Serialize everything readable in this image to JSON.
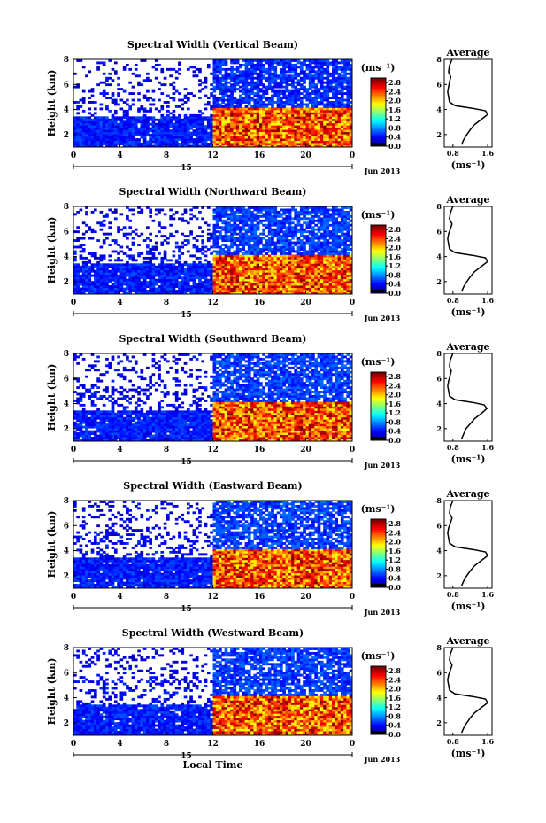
{
  "chart_data": [
    {
      "type": "heatmap",
      "title": "Spectral Width (Vertical Beam)",
      "ylabel": "Height (km)",
      "xticks": [
        "0",
        "4",
        "8",
        "12",
        "16",
        "20",
        "0"
      ],
      "date_day": "15",
      "date_month": "Jun 2013",
      "xlim": [
        0,
        24
      ],
      "ylim": [
        1,
        8
      ],
      "yticks": [
        "2",
        "4",
        "6",
        "8"
      ],
      "colorbar": {
        "unit": "(ms⁻¹)",
        "ticks": [
          "0.0",
          "0.4",
          "0.8",
          "1.2",
          "1.6",
          "2.0",
          "2.4",
          "2.8"
        ],
        "range": [
          0,
          3
        ]
      },
      "regions": [
        {
          "x": [
            0,
            12
          ],
          "y": [
            1,
            3.5
          ],
          "value": 0.45,
          "density": 0.95
        },
        {
          "x": [
            0,
            12
          ],
          "y": [
            3.5,
            5.5
          ],
          "value": 0.35,
          "density": 0.25
        },
        {
          "x": [
            0,
            12
          ],
          "y": [
            5.5,
            8
          ],
          "value": 0.3,
          "density": 0.15
        },
        {
          "x": [
            12,
            24
          ],
          "y": [
            1,
            4.2
          ],
          "value": 2.4,
          "density": 1.0
        },
        {
          "x": [
            12,
            24
          ],
          "y": [
            4.2,
            8
          ],
          "value": 0.5,
          "density": 0.8
        }
      ],
      "average": {
        "title": "Average",
        "xlabel": "(ms⁻¹)",
        "xticks": [
          "0.8",
          "1.6"
        ],
        "xlim": [
          0.6,
          1.7
        ],
        "height": [
          1.2,
          1.6,
          2.0,
          2.4,
          2.8,
          3.2,
          3.6,
          3.9,
          4.1,
          4.3,
          4.6,
          5.0,
          5.4,
          5.8,
          6.2,
          6.6,
          7.0,
          7.5,
          8.0
        ],
        "width": [
          1.0,
          1.05,
          1.12,
          1.2,
          1.3,
          1.45,
          1.6,
          1.55,
          1.25,
          0.85,
          0.72,
          0.7,
          0.68,
          0.7,
          0.72,
          0.75,
          0.7,
          0.72,
          0.78
        ]
      }
    },
    {
      "type": "heatmap",
      "title": "Spectral Width (Northward Beam)",
      "ylabel": "Height (km)",
      "xticks": [
        "0",
        "4",
        "8",
        "12",
        "16",
        "20",
        "0"
      ],
      "date_day": "15",
      "date_month": "Jun 2013",
      "xlim": [
        0,
        24
      ],
      "ylim": [
        1,
        8
      ],
      "yticks": [
        "2",
        "4",
        "6",
        "8"
      ],
      "colorbar": {
        "unit": "(ms⁻¹)",
        "ticks": [
          "0.0",
          "0.4",
          "0.8",
          "1.2",
          "1.6",
          "2.0",
          "2.4",
          "2.8"
        ],
        "range": [
          0,
          3
        ]
      },
      "regions": [
        {
          "x": [
            0,
            12
          ],
          "y": [
            1,
            3.5
          ],
          "value": 0.45,
          "density": 0.95
        },
        {
          "x": [
            0,
            12
          ],
          "y": [
            3.5,
            5.5
          ],
          "value": 0.35,
          "density": 0.3
        },
        {
          "x": [
            0,
            12
          ],
          "y": [
            5.5,
            8
          ],
          "value": 0.3,
          "density": 0.2
        },
        {
          "x": [
            12,
            24
          ],
          "y": [
            1,
            4.2
          ],
          "value": 2.4,
          "density": 1.0
        },
        {
          "x": [
            12,
            24
          ],
          "y": [
            4.2,
            8
          ],
          "value": 0.55,
          "density": 0.8
        }
      ],
      "average": {
        "title": "Average",
        "xlabel": "(ms⁻¹)",
        "xticks": [
          "0.8",
          "1.6"
        ],
        "xlim": [
          0.6,
          1.7
        ],
        "height": [
          1.2,
          1.6,
          2.0,
          2.4,
          2.8,
          3.2,
          3.6,
          3.9,
          4.1,
          4.3,
          4.6,
          5.0,
          5.4,
          5.8,
          6.2,
          6.6,
          7.0,
          7.5,
          8.0
        ],
        "width": [
          1.0,
          1.05,
          1.12,
          1.2,
          1.3,
          1.45,
          1.6,
          1.55,
          1.25,
          0.85,
          0.72,
          0.7,
          0.68,
          0.7,
          0.74,
          0.78,
          0.72,
          0.74,
          0.8
        ]
      }
    },
    {
      "type": "heatmap",
      "title": "Spectral Width (Southward Beam)",
      "ylabel": "Height (km)",
      "xticks": [
        "0",
        "4",
        "8",
        "12",
        "16",
        "20",
        "0"
      ],
      "date_day": "15",
      "date_month": "Jun 2013",
      "xlim": [
        0,
        24
      ],
      "ylim": [
        1,
        8
      ],
      "yticks": [
        "2",
        "4",
        "6",
        "8"
      ],
      "colorbar": {
        "unit": "(ms⁻¹)",
        "ticks": [
          "0.0",
          "0.4",
          "0.8",
          "1.2",
          "1.6",
          "2.0",
          "2.4",
          "2.8"
        ],
        "range": [
          0,
          3
        ]
      },
      "regions": [
        {
          "x": [
            0,
            12
          ],
          "y": [
            1,
            3.5
          ],
          "value": 0.45,
          "density": 0.95
        },
        {
          "x": [
            0,
            12
          ],
          "y": [
            3.5,
            5.5
          ],
          "value": 0.35,
          "density": 0.3
        },
        {
          "x": [
            0,
            12
          ],
          "y": [
            5.5,
            8
          ],
          "value": 0.3,
          "density": 0.2
        },
        {
          "x": [
            12,
            24
          ],
          "y": [
            1,
            4.2
          ],
          "value": 2.4,
          "density": 1.0
        },
        {
          "x": [
            12,
            24
          ],
          "y": [
            4.2,
            8
          ],
          "value": 0.55,
          "density": 0.8
        }
      ],
      "average": {
        "title": "Average",
        "xlabel": "(ms⁻¹)",
        "xticks": [
          "0.8",
          "1.6"
        ],
        "xlim": [
          0.6,
          1.7
        ],
        "height": [
          1.2,
          1.6,
          2.0,
          2.4,
          2.8,
          3.2,
          3.6,
          3.9,
          4.1,
          4.3,
          4.6,
          5.0,
          5.4,
          5.8,
          6.2,
          6.6,
          7.0,
          7.5,
          8.0
        ],
        "width": [
          1.0,
          1.05,
          1.1,
          1.2,
          1.3,
          1.45,
          1.58,
          1.52,
          1.25,
          0.85,
          0.72,
          0.7,
          0.68,
          0.7,
          0.73,
          0.76,
          0.72,
          0.74,
          0.8
        ]
      }
    },
    {
      "type": "heatmap",
      "title": "Spectral Width (Eastward Beam)",
      "ylabel": "Height (km)",
      "xticks": [
        "0",
        "4",
        "8",
        "12",
        "16",
        "20",
        "0"
      ],
      "date_day": "15",
      "date_month": "Jun 2013",
      "xlim": [
        0,
        24
      ],
      "ylim": [
        1,
        8
      ],
      "yticks": [
        "2",
        "4",
        "6",
        "8"
      ],
      "colorbar": {
        "unit": "(ms⁻¹)",
        "ticks": [
          "0.0",
          "0.4",
          "0.8",
          "1.2",
          "1.6",
          "2.0",
          "2.4",
          "2.8"
        ],
        "range": [
          0,
          3
        ]
      },
      "regions": [
        {
          "x": [
            0,
            12
          ],
          "y": [
            1,
            3.5
          ],
          "value": 0.45,
          "density": 0.95
        },
        {
          "x": [
            0,
            12
          ],
          "y": [
            3.5,
            5.5
          ],
          "value": 0.35,
          "density": 0.3
        },
        {
          "x": [
            0,
            12
          ],
          "y": [
            5.5,
            8
          ],
          "value": 0.3,
          "density": 0.18
        },
        {
          "x": [
            12,
            24
          ],
          "y": [
            1,
            4.2
          ],
          "value": 2.4,
          "density": 1.0
        },
        {
          "x": [
            12,
            24
          ],
          "y": [
            4.2,
            8
          ],
          "value": 0.55,
          "density": 0.8
        }
      ],
      "average": {
        "title": "Average",
        "xlabel": "(ms⁻¹)",
        "xticks": [
          "0.8",
          "1.6"
        ],
        "xlim": [
          0.6,
          1.7
        ],
        "height": [
          1.2,
          1.6,
          2.0,
          2.4,
          2.8,
          3.2,
          3.6,
          3.9,
          4.1,
          4.3,
          4.6,
          5.0,
          5.4,
          5.8,
          6.2,
          6.6,
          7.0,
          7.5,
          8.0
        ],
        "width": [
          1.0,
          1.05,
          1.12,
          1.2,
          1.3,
          1.45,
          1.6,
          1.55,
          1.25,
          0.85,
          0.72,
          0.7,
          0.68,
          0.7,
          0.74,
          0.78,
          0.72,
          0.74,
          0.8
        ]
      }
    },
    {
      "type": "heatmap",
      "title": "Spectral Width (Westward Beam)",
      "ylabel": "Height (km)",
      "xlabel": "Local Time",
      "xticks": [
        "0",
        "4",
        "8",
        "12",
        "16",
        "20",
        "0"
      ],
      "date_day": "15",
      "date_month": "Jun 2013",
      "xlim": [
        0,
        24
      ],
      "ylim": [
        1,
        8
      ],
      "yticks": [
        "2",
        "4",
        "6",
        "8"
      ],
      "colorbar": {
        "unit": "(ms⁻¹)",
        "ticks": [
          "0.0",
          "0.4",
          "0.8",
          "1.2",
          "1.6",
          "2.0",
          "2.4",
          "2.8"
        ],
        "range": [
          0,
          3
        ]
      },
      "regions": [
        {
          "x": [
            0,
            12
          ],
          "y": [
            1,
            3.5
          ],
          "value": 0.45,
          "density": 0.95
        },
        {
          "x": [
            0,
            12
          ],
          "y": [
            3.5,
            5.5
          ],
          "value": 0.35,
          "density": 0.3
        },
        {
          "x": [
            0,
            12
          ],
          "y": [
            5.5,
            8
          ],
          "value": 0.3,
          "density": 0.2
        },
        {
          "x": [
            12,
            24
          ],
          "y": [
            1,
            4.2
          ],
          "value": 2.4,
          "density": 1.0
        },
        {
          "x": [
            12,
            24
          ],
          "y": [
            4.2,
            8
          ],
          "value": 0.55,
          "density": 0.8
        }
      ],
      "average": {
        "title": "Average",
        "xlabel": "(ms⁻¹)",
        "xticks": [
          "0.8",
          "1.6"
        ],
        "xlim": [
          0.6,
          1.7
        ],
        "height": [
          1.2,
          1.6,
          2.0,
          2.4,
          2.8,
          3.2,
          3.6,
          3.9,
          4.1,
          4.3,
          4.6,
          5.0,
          5.4,
          5.8,
          6.2,
          6.6,
          7.0,
          7.5,
          8.0
        ],
        "width": [
          1.0,
          1.05,
          1.12,
          1.2,
          1.3,
          1.45,
          1.6,
          1.55,
          1.25,
          0.85,
          0.72,
          0.7,
          0.68,
          0.7,
          0.74,
          0.78,
          0.72,
          0.74,
          0.8
        ]
      }
    }
  ]
}
